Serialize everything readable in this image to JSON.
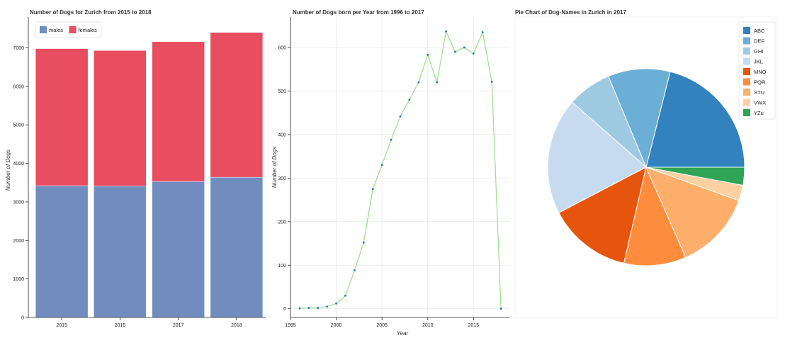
{
  "chart_data": [
    {
      "type": "bar",
      "stacked": true,
      "title": "Number of Dogs for Zurich from 2015 to 2018",
      "xlabel": "",
      "ylabel": "Number of Dogs",
      "categories": [
        "2015",
        "2016",
        "2017",
        "2018"
      ],
      "series": [
        {
          "name": "males",
          "color": "#718dbf",
          "values": [
            3420,
            3410,
            3530,
            3640
          ]
        },
        {
          "name": "females",
          "color": "#e84d60",
          "values": [
            3560,
            3520,
            3630,
            3760
          ]
        }
      ],
      "ylim": [
        0,
        7800
      ],
      "yticks": [
        0,
        1000,
        2000,
        3000,
        4000,
        5000,
        6000,
        7000
      ],
      "legend": "top-left",
      "grid": false
    },
    {
      "type": "line",
      "title": "Number of Dogs born per Year from 1996 to 2017",
      "xlabel": "Year",
      "ylabel": "Number of Dogs",
      "color": "#98df8a",
      "marker_color": "#1f77b4",
      "x": [
        1996,
        1997,
        1998,
        1999,
        2000,
        2001,
        2002,
        2003,
        2004,
        2005,
        2006,
        2007,
        2008,
        2009,
        2010,
        2011,
        2012,
        2013,
        2014,
        2015,
        2016,
        2017,
        2018
      ],
      "y": [
        1,
        2,
        2,
        5,
        12,
        30,
        88,
        152,
        275,
        330,
        388,
        442,
        480,
        520,
        583,
        520,
        637,
        590,
        600,
        586,
        635,
        521,
        0
      ],
      "xlim": [
        1995,
        2019
      ],
      "ylim": [
        -20,
        670
      ],
      "xticks": [
        1995,
        2000,
        2005,
        2010,
        2015
      ],
      "yticks": [
        0,
        100,
        200,
        300,
        400,
        500,
        600
      ],
      "grid": true
    },
    {
      "type": "pie",
      "title": "Pie Chart of Dog-Names in Zurich in 2017",
      "labels": [
        "ABC",
        "DEF",
        "GHI",
        "JKL",
        "MNO",
        "PQR",
        "STU",
        "VWX",
        "YZu"
      ],
      "values": [
        21.5,
        10.4,
        7.4,
        19.5,
        14.0,
        10.4,
        13.2,
        2.6,
        3.0
      ],
      "colors": [
        "#3182bd",
        "#6baed6",
        "#9ecae1",
        "#c6dbef",
        "#e6550d",
        "#fd8d3c",
        "#fdae6b",
        "#fdd0a2",
        "#31a354"
      ],
      "legend": "top-right"
    }
  ]
}
